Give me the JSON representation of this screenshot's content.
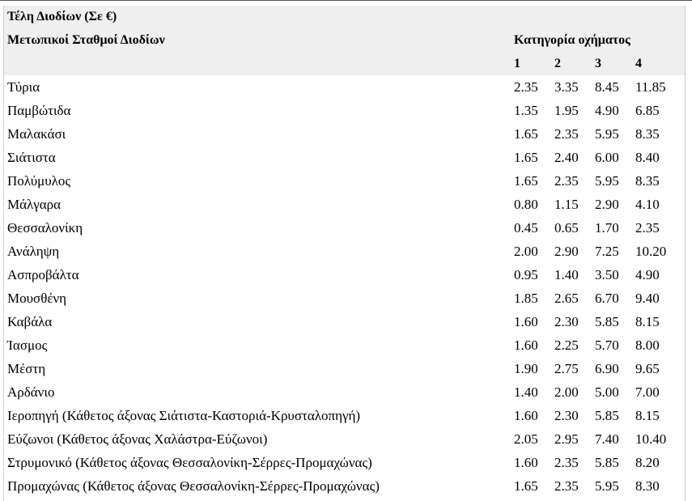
{
  "table": {
    "title": "Τέλη Διοδίων (Σε €)",
    "station_header": "Μετωπικοί Σταθμοί Διοδίων",
    "category_header": "Κατηγορία οχήματος",
    "categories": [
      "1",
      "2",
      "3",
      "4"
    ],
    "rows": [
      {
        "name": "Τύρια",
        "v1": "2.35",
        "v2": "3.35",
        "v3": "8.45",
        "v4": "11.85"
      },
      {
        "name": "Παμβώτιδα",
        "v1": "1.35",
        "v2": "1.95",
        "v3": "4.90",
        "v4": "6.85"
      },
      {
        "name": "Μαλακάσι",
        "v1": "1.65",
        "v2": "2.35",
        "v3": "5.95",
        "v4": "8.35"
      },
      {
        "name": "Σιάτιστα",
        "v1": "1.65",
        "v2": "2.40",
        "v3": "6.00",
        "v4": "8.40"
      },
      {
        "name": "Πολύμυλος",
        "v1": "1.65",
        "v2": "2.35",
        "v3": "5.95",
        "v4": "8.35"
      },
      {
        "name": "Μάλγαρα",
        "v1": "0.80",
        "v2": "1.15",
        "v3": "2.90",
        "v4": "4.10"
      },
      {
        "name": "Θεσσαλονίκη",
        "v1": "0.45",
        "v2": "0.65",
        "v3": "1.70",
        "v4": "2.35"
      },
      {
        "name": "Ανάληψη",
        "v1": "2.00",
        "v2": "2.90",
        "v3": "7.25",
        "v4": "10.20"
      },
      {
        "name": "Ασπροβάλτα",
        "v1": "0.95",
        "v2": "1.40",
        "v3": "3.50",
        "v4": "4.90"
      },
      {
        "name": "Μουσθένη",
        "v1": "1.85",
        "v2": "2.65",
        "v3": "6.70",
        "v4": "9.40"
      },
      {
        "name": "Καβάλα",
        "v1": "1.60",
        "v2": "2.30",
        "v3": "5.85",
        "v4": "8.15"
      },
      {
        "name": "Ίασμος",
        "v1": "1.60",
        "v2": "2.25",
        "v3": "5.70",
        "v4": "8.00"
      },
      {
        "name": "Μέστη",
        "v1": "1.90",
        "v2": "2.75",
        "v3": "6.90",
        "v4": "9.65"
      },
      {
        "name": "Αρδάνιο",
        "v1": "1.40",
        "v2": "2.00",
        "v3": "5.00",
        "v4": "7.00"
      },
      {
        "name": "Ιεροπηγή (Κάθετος άξονας Σιάτιστα-Καστοριά-Κρυσταλοπηγή)",
        "v1": "1.60",
        "v2": "2.30",
        "v3": "5.85",
        "v4": "8.15"
      },
      {
        "name": "Εύζωνοι (Κάθετος άξονας Χαλάστρα-Εύζωνοι)",
        "v1": "2.05",
        "v2": "2.95",
        "v3": "7.40",
        "v4": "10.40"
      },
      {
        "name": "Στρυμονικό (Κάθετος άξονας Θεσσαλονίκη-Σέρρες-Προμαχώνας)",
        "v1": "1.60",
        "v2": "2.35",
        "v3": "5.85",
        "v4": "8.20"
      },
      {
        "name": "Προμαχώνας (Κάθετος άξονας Θεσσαλονίκη-Σέρρες-Προμαχώνας)",
        "v1": "1.65",
        "v2": "2.35",
        "v3": "5.95",
        "v4": "8.30"
      }
    ]
  }
}
